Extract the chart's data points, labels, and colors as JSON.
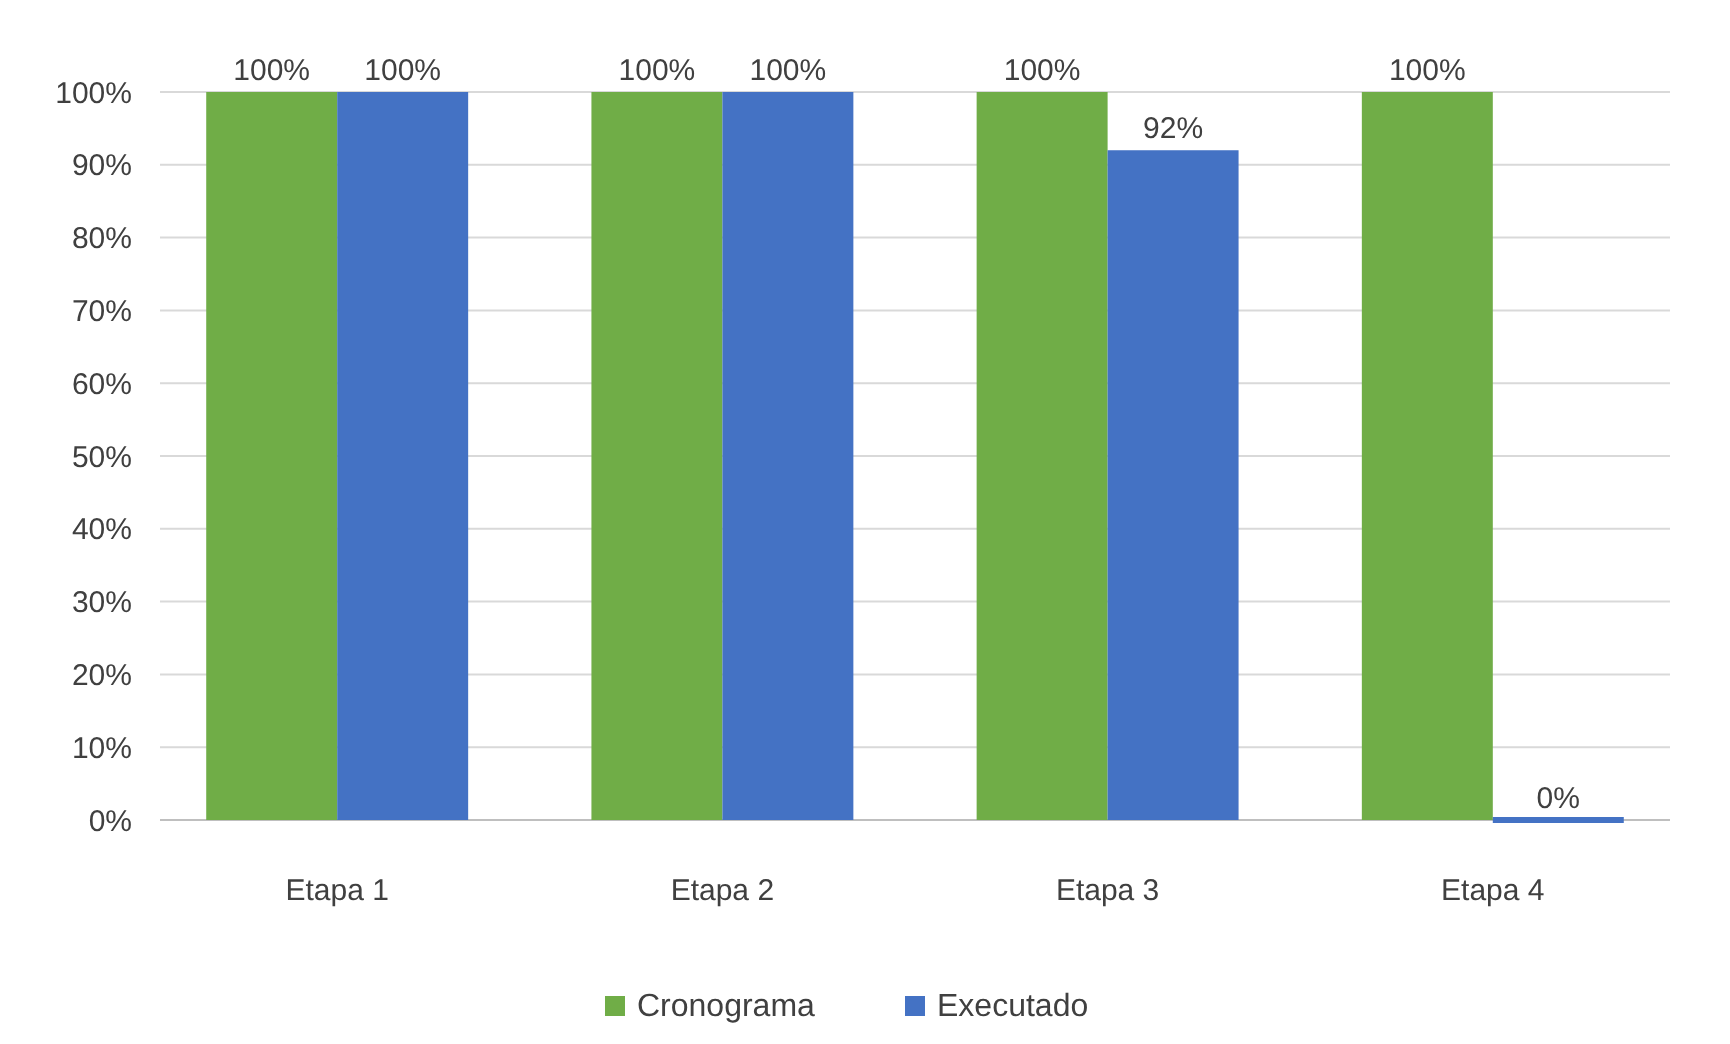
{
  "chart_data": {
    "type": "bar",
    "categories": [
      "Etapa 1",
      "Etapa 2",
      "Etapa 3",
      "Etapa 4"
    ],
    "series": [
      {
        "name": "Cronograma",
        "color": "#70ad47",
        "values": [
          100,
          100,
          100,
          100
        ],
        "value_labels": [
          "100%",
          "100%",
          "100%",
          "100%"
        ]
      },
      {
        "name": "Executado",
        "color": "#4472c4",
        "values": [
          100,
          100,
          92,
          0
        ],
        "value_labels": [
          "100%",
          "100%",
          "92%",
          "0%"
        ]
      }
    ],
    "ylim": [
      0,
      100
    ],
    "yticks": [
      {
        "value": 0,
        "label": "0%"
      },
      {
        "value": 10,
        "label": "10%"
      },
      {
        "value": 20,
        "label": "20%"
      },
      {
        "value": 30,
        "label": "30%"
      },
      {
        "value": 40,
        "label": "40%"
      },
      {
        "value": 50,
        "label": "50%"
      },
      {
        "value": 60,
        "label": "60%"
      },
      {
        "value": 70,
        "label": "70%"
      },
      {
        "value": 80,
        "label": "80%"
      },
      {
        "value": 90,
        "label": "90%"
      },
      {
        "value": 100,
        "label": "100%"
      }
    ],
    "grid": "y",
    "legend": "bottom"
  }
}
